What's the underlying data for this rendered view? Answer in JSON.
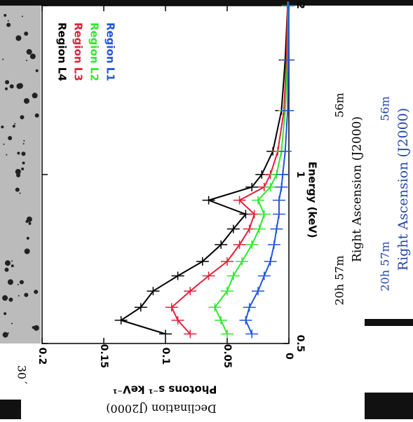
{
  "chart_data": {
    "type": "step-spectrum",
    "x_label": "Energy (keV)",
    "y_label": "Photons s⁻¹ keV⁻¹",
    "log_x": true,
    "x": [
      0.52,
      0.55,
      0.58,
      0.62,
      0.66,
      0.7,
      0.75,
      0.8,
      0.85,
      0.9,
      0.95,
      1.0,
      1.1,
      1.3,
      1.6,
      2.0
    ],
    "series": [
      {
        "name": "Region L4",
        "color": "#000000",
        "values": [
          0.1,
          0.136,
          0.12,
          0.11,
          0.09,
          0.07,
          0.055,
          0.045,
          0.035,
          0.065,
          0.03,
          0.022,
          0.013,
          0.006,
          0.003,
          0.001
        ]
      },
      {
        "name": "Region L3",
        "color": "#e0213a",
        "values": [
          0.08,
          0.09,
          0.095,
          0.08,
          0.065,
          0.05,
          0.04,
          0.032,
          0.028,
          0.04,
          0.02,
          0.015,
          0.009,
          0.004,
          0.002,
          0.001
        ]
      },
      {
        "name": "Region L2",
        "color": "#2ee82e",
        "values": [
          0.05,
          0.055,
          0.06,
          0.05,
          0.045,
          0.038,
          0.03,
          0.024,
          0.02,
          0.025,
          0.015,
          0.01,
          0.006,
          0.003,
          0.001,
          0.0005
        ]
      },
      {
        "name": "Region L1",
        "color": "#2255dd",
        "values": [
          0.03,
          0.035,
          0.032,
          0.025,
          0.02,
          0.015,
          0.012,
          0.01,
          0.008,
          0.008,
          0.006,
          0.005,
          0.003,
          0.001,
          0.0005,
          0.0002
        ]
      }
    ],
    "xlim": [
      0.5,
      2
    ],
    "xticks": [
      0.5,
      1,
      2
    ],
    "ylim": [
      0,
      0.2
    ],
    "yticks": [
      0,
      0.05,
      0.1,
      0.15,
      0.2
    ]
  },
  "background": {
    "scale": "30´",
    "ra_left": "20h 57m",
    "ra_right": "56m",
    "ra_axis": "Right Ascension (J2000)",
    "dec_axis": "Declination (J2000)"
  }
}
